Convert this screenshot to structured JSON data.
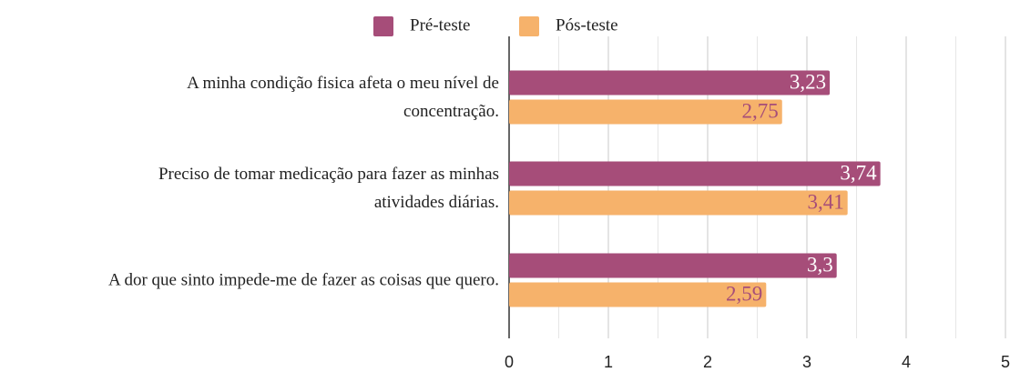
{
  "chart_data": {
    "type": "hbar",
    "categories": [
      "A minha condição fisica afeta o meu nível de\nconcentração.",
      "Preciso de tomar medicação para fazer as minhas\natividades diárias.",
      "A dor que sinto impede-me de fazer as coisas que quero."
    ],
    "series": [
      {
        "name": "Pré-teste",
        "color": "#a64d79",
        "label_color": "#ffffff",
        "values": [
          3.23,
          3.74,
          3.3
        ],
        "value_labels": [
          "3,23",
          "3,74",
          "3,3"
        ]
      },
      {
        "name": "Pós-teste",
        "color": "#f6b26b",
        "label_color": "#a64d79",
        "values": [
          2.75,
          3.41,
          2.59
        ],
        "value_labels": [
          "2,75",
          "3,41",
          "2,59"
        ]
      }
    ],
    "xlim": [
      0,
      5
    ],
    "xticks": [
      0,
      1,
      2,
      3,
      4,
      5
    ],
    "xticks_minor": [
      0.5,
      1.5,
      2.5,
      3.5,
      4.5
    ],
    "grid": true,
    "legend": "top"
  }
}
